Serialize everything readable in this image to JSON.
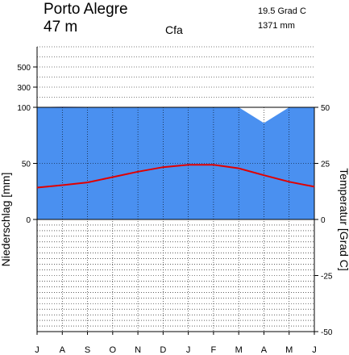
{
  "station": {
    "name": "Porto Alegre",
    "elevation": "47 m"
  },
  "climate_class": "Cfa",
  "summary": {
    "mean_temperature": "19.5 Grad C",
    "annual_precipitation": "1371 mm"
  },
  "chart_data": {
    "type": "climate-diagram",
    "title": "Porto Alegre",
    "categories": [
      "J",
      "A",
      "S",
      "O",
      "N",
      "D",
      "J",
      "F",
      "M",
      "A",
      "M",
      "J"
    ],
    "series": [
      {
        "name": "Niederschlag",
        "unit": "mm",
        "values": [
          103,
          105,
          104,
          100,
          100,
          100,
          100,
          101,
          100,
          86,
          100,
          103
        ]
      },
      {
        "name": "Temperatur",
        "unit": "Grad C",
        "values": [
          14.2,
          15.3,
          16.5,
          18.9,
          21.3,
          23.3,
          24.4,
          24.4,
          22.8,
          19.7,
          16.8,
          14.6
        ]
      }
    ],
    "ylabel_left": "Niederschlag [mm]",
    "ylabel_right": "Temperatur [Grad C]",
    "left_ticks": [
      "0",
      "50",
      "100",
      "300",
      "500"
    ],
    "right_ticks": [
      "-50",
      "-25",
      "0",
      "25",
      "50"
    ],
    "precip_scale": "linear 0–100 mm, compressed above 100 mm",
    "temp_range": [
      -50,
      50
    ],
    "grid": true,
    "colors": {
      "humid": "#4a90f0",
      "excess": "#1616c8",
      "temperature": "#e00000"
    }
  }
}
